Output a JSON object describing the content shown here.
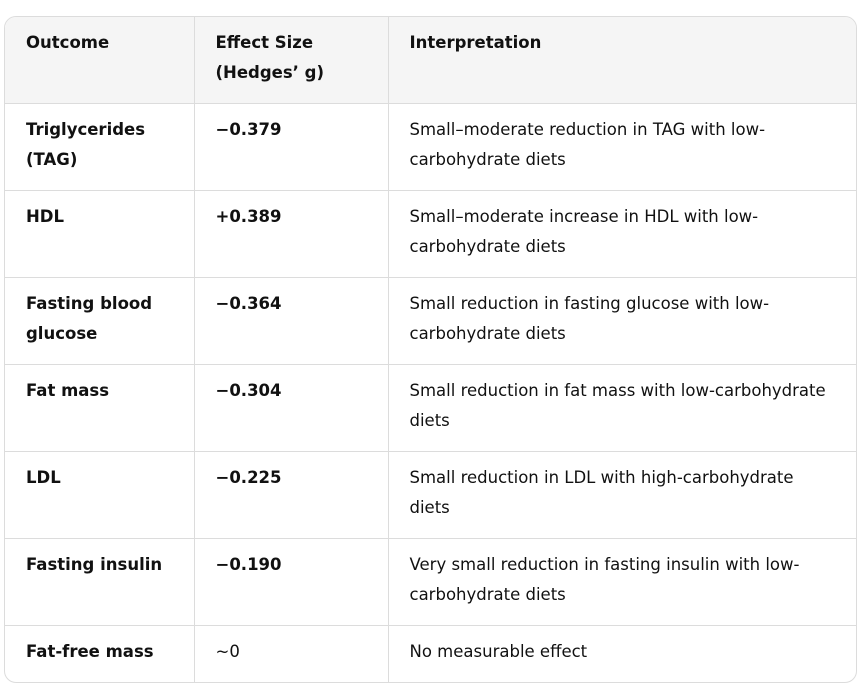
{
  "table": {
    "headers": [
      "Outcome",
      "Effect Size (Hedges’ g)",
      "Interpretation"
    ],
    "rows": [
      [
        "Triglycerides (TAG)",
        "−0.379",
        "Small–moderate reduction in TAG with low-carbohydrate diets"
      ],
      [
        "HDL",
        "+0.389",
        "Small–moderate increase in HDL with low-carbohydrate diets"
      ],
      [
        "Fasting blood glucose",
        "−0.364",
        "Small reduction in fasting glucose with low-carbohydrate diets"
      ],
      [
        "Fat mass",
        "−0.304",
        "Small reduction in fat mass with low-carbohydrate diets"
      ],
      [
        "LDL",
        "−0.225",
        "Small reduction in LDL with high-carbohydrate diets"
      ],
      [
        "Fasting insulin",
        "−0.190",
        "Very small reduction in fasting insulin with low-carbohydrate diets"
      ],
      [
        "Fat-free mass",
        "~0",
        "No measurable effect"
      ]
    ]
  }
}
